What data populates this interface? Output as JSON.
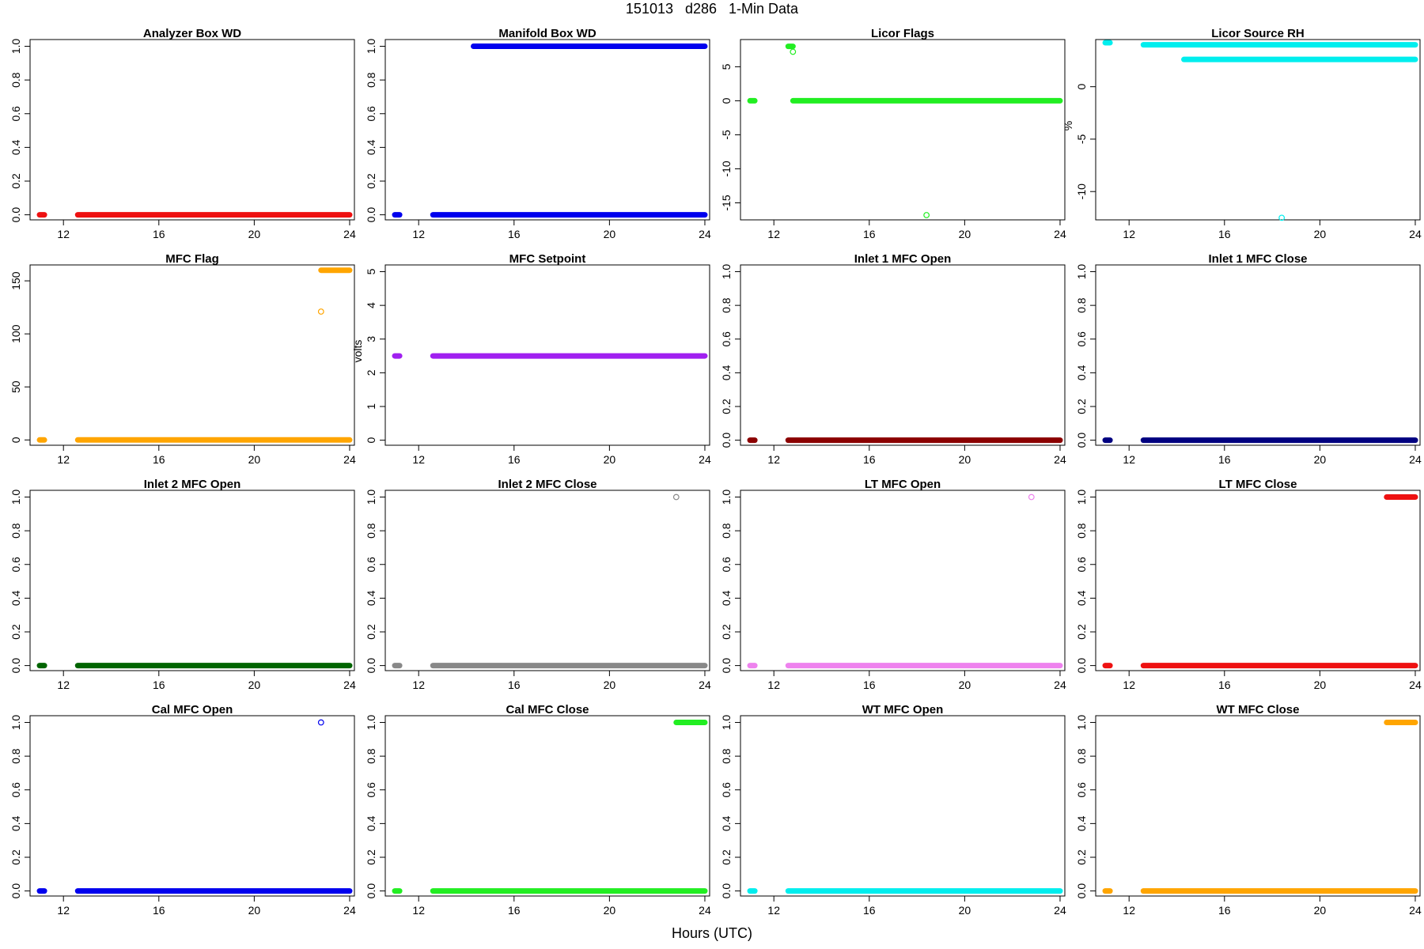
{
  "figure": {
    "title": "151013   d286   1-Min Data",
    "xlabel": "Hours (UTC)"
  },
  "chart_data": [
    {
      "type": "scatter",
      "title": "Analyzer Box WD",
      "ylabel": "",
      "color": "#ee1111",
      "xlim": [
        10.6,
        24.2
      ],
      "ylim": [
        -0.03,
        1.04
      ],
      "xticks": [
        12,
        16,
        20,
        24
      ],
      "yticks": [
        0.0,
        0.2,
        0.4,
        0.6,
        0.8,
        1.0
      ],
      "ytick_labels": [
        "0.0",
        "0.2",
        "0.4",
        "0.6",
        "0.8",
        "1.0"
      ],
      "segments": [
        {
          "x": [
            11.0,
            11.2
          ],
          "y": 0
        },
        {
          "x": [
            12.6,
            24.0
          ],
          "y": 0
        }
      ],
      "points": []
    },
    {
      "type": "scatter",
      "title": "Manifold Box WD",
      "ylabel": "",
      "color": "#0000ee",
      "xlim": [
        10.6,
        24.2
      ],
      "ylim": [
        -0.03,
        1.04
      ],
      "xticks": [
        12,
        16,
        20,
        24
      ],
      "yticks": [
        0.0,
        0.2,
        0.4,
        0.6,
        0.8,
        1.0
      ],
      "ytick_labels": [
        "0.0",
        "0.2",
        "0.4",
        "0.6",
        "0.8",
        "1.0"
      ],
      "segments": [
        {
          "x": [
            11.0,
            11.2
          ],
          "y": 0
        },
        {
          "x": [
            12.6,
            24.0
          ],
          "y": 0
        },
        {
          "x": [
            14.3,
            24.0
          ],
          "y": 1
        }
      ],
      "points": []
    },
    {
      "type": "scatter",
      "title": "Licor Flags",
      "ylabel": "",
      "color": "#22ee22",
      "xlim": [
        10.6,
        24.2
      ],
      "ylim": [
        -17.5,
        9
      ],
      "xticks": [
        12,
        16,
        20,
        24
      ],
      "yticks": [
        -15,
        -10,
        -5,
        0,
        5
      ],
      "ytick_labels": [
        "-15",
        "-10",
        "-5",
        "0",
        "5"
      ],
      "segments": [
        {
          "x": [
            11.0,
            11.2
          ],
          "y": 0
        },
        {
          "x": [
            12.6,
            12.8
          ],
          "y": 8
        },
        {
          "x": [
            12.8,
            24.0
          ],
          "y": 0
        }
      ],
      "points": [
        {
          "x": 12.8,
          "y": 7.2
        },
        {
          "x": 18.4,
          "y": -16.8
        }
      ]
    },
    {
      "type": "scatter",
      "title": "Licor Source RH",
      "ylabel": "%",
      "color": "#00eeee",
      "xlim": [
        10.6,
        24.2
      ],
      "ylim": [
        -12.7,
        4.5
      ],
      "xticks": [
        12,
        16,
        20,
        24
      ],
      "yticks": [
        -10,
        -5,
        0
      ],
      "ytick_labels": [
        "-10",
        "-5",
        "0"
      ],
      "segments": [
        {
          "x": [
            11.0,
            11.2
          ],
          "y": 4.2
        },
        {
          "x": [
            12.6,
            24.0
          ],
          "y": 4.0
        },
        {
          "x": [
            14.3,
            24.0
          ],
          "y": 2.6
        }
      ],
      "points": [
        {
          "x": 18.4,
          "y": -12.5
        }
      ]
    },
    {
      "type": "scatter",
      "title": "MFC Flag",
      "ylabel": "",
      "color": "#ffa500",
      "xlim": [
        10.6,
        24.2
      ],
      "ylim": [
        -5,
        165
      ],
      "xticks": [
        12,
        16,
        20,
        24
      ],
      "yticks": [
        0,
        50,
        100,
        150
      ],
      "ytick_labels": [
        "0",
        "50",
        "100",
        "150"
      ],
      "segments": [
        {
          "x": [
            11.0,
            11.2
          ],
          "y": 0
        },
        {
          "x": [
            12.6,
            24.0
          ],
          "y": 0
        },
        {
          "x": [
            22.8,
            24.0
          ],
          "y": 160
        }
      ],
      "points": [
        {
          "x": 22.8,
          "y": 121
        }
      ]
    },
    {
      "type": "scatter",
      "title": "MFC Setpoint",
      "ylabel": "volts",
      "color": "#a020f0",
      "xlim": [
        10.6,
        24.2
      ],
      "ylim": [
        -0.15,
        5.2
      ],
      "xticks": [
        12,
        16,
        20,
        24
      ],
      "yticks": [
        0,
        1,
        2,
        3,
        4,
        5
      ],
      "ytick_labels": [
        "0",
        "1",
        "2",
        "3",
        "4",
        "5"
      ],
      "segments": [
        {
          "x": [
            11.0,
            11.2
          ],
          "y": 2.5
        },
        {
          "x": [
            12.6,
            24.0
          ],
          "y": 2.5
        }
      ],
      "points": []
    },
    {
      "type": "scatter",
      "title": "Inlet 1 MFC Open",
      "ylabel": "",
      "color": "#8b0000",
      "xlim": [
        10.6,
        24.2
      ],
      "ylim": [
        -0.03,
        1.04
      ],
      "xticks": [
        12,
        16,
        20,
        24
      ],
      "yticks": [
        0.0,
        0.2,
        0.4,
        0.6,
        0.8,
        1.0
      ],
      "ytick_labels": [
        "0.0",
        "0.2",
        "0.4",
        "0.6",
        "0.8",
        "1.0"
      ],
      "segments": [
        {
          "x": [
            11.0,
            11.2
          ],
          "y": 0
        },
        {
          "x": [
            12.6,
            24.0
          ],
          "y": 0
        }
      ],
      "points": []
    },
    {
      "type": "scatter",
      "title": "Inlet 1 MFC Close",
      "ylabel": "",
      "color": "#000080",
      "xlim": [
        10.6,
        24.2
      ],
      "ylim": [
        -0.03,
        1.04
      ],
      "xticks": [
        12,
        16,
        20,
        24
      ],
      "yticks": [
        0.0,
        0.2,
        0.4,
        0.6,
        0.8,
        1.0
      ],
      "ytick_labels": [
        "0.0",
        "0.2",
        "0.4",
        "0.6",
        "0.8",
        "1.0"
      ],
      "segments": [
        {
          "x": [
            11.0,
            11.2
          ],
          "y": 0
        },
        {
          "x": [
            12.6,
            24.0
          ],
          "y": 0
        }
      ],
      "points": []
    },
    {
      "type": "scatter",
      "title": "Inlet 2 MFC Open",
      "ylabel": "",
      "color": "#006400",
      "xlim": [
        10.6,
        24.2
      ],
      "ylim": [
        -0.03,
        1.04
      ],
      "xticks": [
        12,
        16,
        20,
        24
      ],
      "yticks": [
        0.0,
        0.2,
        0.4,
        0.6,
        0.8,
        1.0
      ],
      "ytick_labels": [
        "0.0",
        "0.2",
        "0.4",
        "0.6",
        "0.8",
        "1.0"
      ],
      "segments": [
        {
          "x": [
            11.0,
            11.2
          ],
          "y": 0
        },
        {
          "x": [
            12.6,
            24.0
          ],
          "y": 0
        }
      ],
      "points": []
    },
    {
      "type": "scatter",
      "title": "Inlet 2 MFC Close",
      "ylabel": "",
      "color": "#888888",
      "xlim": [
        10.6,
        24.2
      ],
      "ylim": [
        -0.03,
        1.04
      ],
      "xticks": [
        12,
        16,
        20,
        24
      ],
      "yticks": [
        0.0,
        0.2,
        0.4,
        0.6,
        0.8,
        1.0
      ],
      "ytick_labels": [
        "0.0",
        "0.2",
        "0.4",
        "0.6",
        "0.8",
        "1.0"
      ],
      "segments": [
        {
          "x": [
            11.0,
            11.2
          ],
          "y": 0
        },
        {
          "x": [
            12.6,
            24.0
          ],
          "y": 0
        }
      ],
      "points": [
        {
          "x": 22.8,
          "y": 1
        }
      ]
    },
    {
      "type": "scatter",
      "title": "LT MFC Open",
      "ylabel": "",
      "color": "#ee82ee",
      "xlim": [
        10.6,
        24.2
      ],
      "ylim": [
        -0.03,
        1.04
      ],
      "xticks": [
        12,
        16,
        20,
        24
      ],
      "yticks": [
        0.0,
        0.2,
        0.4,
        0.6,
        0.8,
        1.0
      ],
      "ytick_labels": [
        "0.0",
        "0.2",
        "0.4",
        "0.6",
        "0.8",
        "1.0"
      ],
      "segments": [
        {
          "x": [
            11.0,
            11.2
          ],
          "y": 0
        },
        {
          "x": [
            12.6,
            24.0
          ],
          "y": 0
        }
      ],
      "points": [
        {
          "x": 22.8,
          "y": 1
        }
      ]
    },
    {
      "type": "scatter",
      "title": "LT MFC Close",
      "ylabel": "",
      "color": "#ee1111",
      "xlim": [
        10.6,
        24.2
      ],
      "ylim": [
        -0.03,
        1.04
      ],
      "xticks": [
        12,
        16,
        20,
        24
      ],
      "yticks": [
        0.0,
        0.2,
        0.4,
        0.6,
        0.8,
        1.0
      ],
      "ytick_labels": [
        "0.0",
        "0.2",
        "0.4",
        "0.6",
        "0.8",
        "1.0"
      ],
      "segments": [
        {
          "x": [
            11.0,
            11.2
          ],
          "y": 0
        },
        {
          "x": [
            12.6,
            24.0
          ],
          "y": 0
        },
        {
          "x": [
            22.8,
            24.0
          ],
          "y": 1
        }
      ],
      "points": []
    },
    {
      "type": "scatter",
      "title": "Cal MFC Open",
      "ylabel": "",
      "color": "#0000ee",
      "xlim": [
        10.6,
        24.2
      ],
      "ylim": [
        -0.03,
        1.04
      ],
      "xticks": [
        12,
        16,
        20,
        24
      ],
      "yticks": [
        0.0,
        0.2,
        0.4,
        0.6,
        0.8,
        1.0
      ],
      "ytick_labels": [
        "0.0",
        "0.2",
        "0.4",
        "0.6",
        "0.8",
        "1.0"
      ],
      "segments": [
        {
          "x": [
            11.0,
            11.2
          ],
          "y": 0
        },
        {
          "x": [
            12.6,
            24.0
          ],
          "y": 0
        }
      ],
      "points": [
        {
          "x": 22.8,
          "y": 1
        }
      ]
    },
    {
      "type": "scatter",
      "title": "Cal MFC Close",
      "ylabel": "",
      "color": "#22ee22",
      "xlim": [
        10.6,
        24.2
      ],
      "ylim": [
        -0.03,
        1.04
      ],
      "xticks": [
        12,
        16,
        20,
        24
      ],
      "yticks": [
        0.0,
        0.2,
        0.4,
        0.6,
        0.8,
        1.0
      ],
      "ytick_labels": [
        "0.0",
        "0.2",
        "0.4",
        "0.6",
        "0.8",
        "1.0"
      ],
      "segments": [
        {
          "x": [
            11.0,
            11.2
          ],
          "y": 0
        },
        {
          "x": [
            12.6,
            24.0
          ],
          "y": 0
        },
        {
          "x": [
            22.8,
            24.0
          ],
          "y": 1
        }
      ],
      "points": []
    },
    {
      "type": "scatter",
      "title": "WT MFC Open",
      "ylabel": "",
      "color": "#00eeee",
      "xlim": [
        10.6,
        24.2
      ],
      "ylim": [
        -0.03,
        1.04
      ],
      "xticks": [
        12,
        16,
        20,
        24
      ],
      "yticks": [
        0.0,
        0.2,
        0.4,
        0.6,
        0.8,
        1.0
      ],
      "ytick_labels": [
        "0.0",
        "0.2",
        "0.4",
        "0.6",
        "0.8",
        "1.0"
      ],
      "segments": [
        {
          "x": [
            11.0,
            11.2
          ],
          "y": 0
        },
        {
          "x": [
            12.6,
            24.0
          ],
          "y": 0
        }
      ],
      "points": []
    },
    {
      "type": "scatter",
      "title": "WT MFC Close",
      "ylabel": "",
      "color": "#ffa500",
      "xlim": [
        10.6,
        24.2
      ],
      "ylim": [
        -0.03,
        1.04
      ],
      "xticks": [
        12,
        16,
        20,
        24
      ],
      "yticks": [
        0.0,
        0.2,
        0.4,
        0.6,
        0.8,
        1.0
      ],
      "ytick_labels": [
        "0.0",
        "0.2",
        "0.4",
        "0.6",
        "0.8",
        "1.0"
      ],
      "segments": [
        {
          "x": [
            11.0,
            11.2
          ],
          "y": 0
        },
        {
          "x": [
            12.6,
            24.0
          ],
          "y": 0
        },
        {
          "x": [
            22.8,
            24.0
          ],
          "y": 1
        }
      ],
      "points": []
    }
  ]
}
